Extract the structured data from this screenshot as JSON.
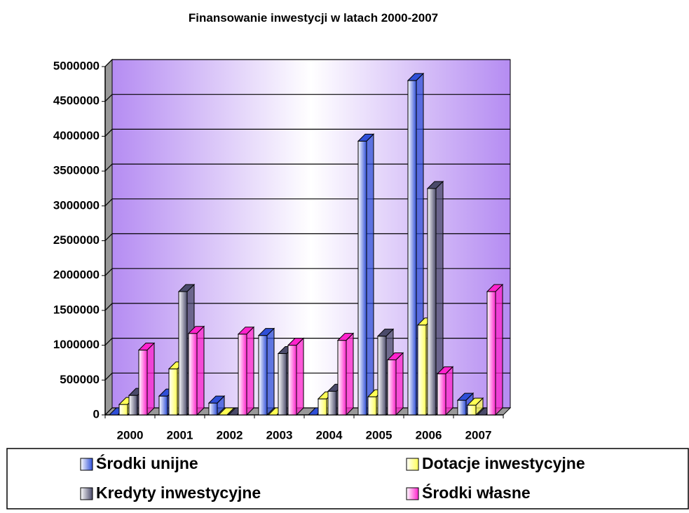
{
  "chart_data": {
    "type": "bar3d",
    "title": "Finansowanie inwestycji w latach 2000-2007",
    "categories": [
      "2000",
      "2001",
      "2002",
      "2003",
      "2004",
      "2005",
      "2006",
      "2007"
    ],
    "series": [
      {
        "name": "Środki unijne",
        "color": "#2f4fd8",
        "values": [
          0,
          270000,
          170000,
          1140000,
          0,
          3930000,
          4800000,
          210000
        ]
      },
      {
        "name": "Dotacje inwestycyjne",
        "color": "#ffff55",
        "values": [
          150000,
          660000,
          0,
          0,
          230000,
          260000,
          1290000,
          140000
        ]
      },
      {
        "name": "Kredyty inwestycyjne",
        "color": "#4a4a6a",
        "values": [
          280000,
          1770000,
          0,
          880000,
          340000,
          1130000,
          3250000,
          0
        ]
      },
      {
        "name": "Środki własne",
        "color": "#ff22cc",
        "values": [
          930000,
          1170000,
          1160000,
          1000000,
          1070000,
          790000,
          590000,
          1770000
        ]
      }
    ],
    "ylim": [
      0,
      5000000
    ],
    "yticks": [
      0,
      500000,
      1000000,
      1500000,
      2000000,
      2500000,
      3000000,
      3500000,
      4000000,
      4500000,
      5000000
    ],
    "grid": true
  }
}
